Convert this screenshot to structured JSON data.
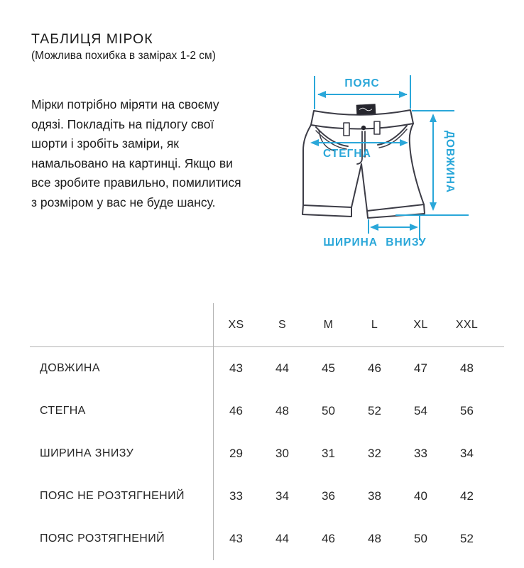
{
  "header": {
    "title": "ТАБЛИЦЯ МІРОК",
    "subtitle": "(Можлива похибка в замірах 1-2 см)"
  },
  "intro": {
    "lines": [
      "Мірки потрібно міряти на своєму",
      "одязі. Покладіть на підлогу свої",
      "шорти і зробіть заміри, як",
      "намальовано на картинці. Якщо ви",
      "все зробите правильно, помилитися",
      "з розміром у вас не буде шансу."
    ]
  },
  "diagram": {
    "labels": {
      "waist": "ПОЯС",
      "hips": "СТЕГНА",
      "length": "ДОВЖИНА",
      "bottom_width": "ШИРИНА ВНИЗУ"
    },
    "accent_color": "#2aa7d9",
    "outline_color": "#3c3c46"
  },
  "size_table": {
    "columns": [
      "XS",
      "S",
      "M",
      "L",
      "XL",
      "XXL"
    ],
    "rows": [
      {
        "label": "ДОВЖИНА",
        "values": [
          43,
          44,
          45,
          46,
          47,
          48
        ]
      },
      {
        "label": "СТЕГНА",
        "values": [
          46,
          48,
          50,
          52,
          54,
          56
        ]
      },
      {
        "label": "ШИРИНА ЗНИЗУ",
        "values": [
          29,
          30,
          31,
          32,
          33,
          34
        ]
      },
      {
        "label": "ПОЯС НЕ РОЗТЯГНЕНИЙ",
        "values": [
          33,
          34,
          36,
          38,
          40,
          42
        ]
      },
      {
        "label": "ПОЯС РОЗТЯГНЕНИЙ",
        "values": [
          43,
          44,
          46,
          48,
          50,
          52
        ]
      }
    ]
  }
}
